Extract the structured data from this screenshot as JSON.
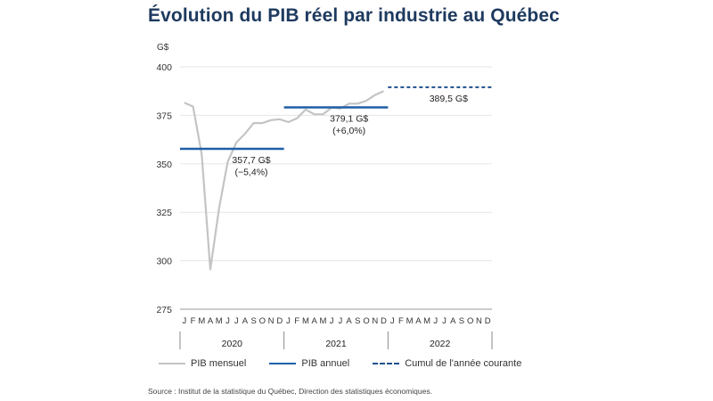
{
  "chart_data": {
    "type": "line",
    "title": "Évolution du PIB réel par industrie au Québec",
    "ylabel": "G$",
    "ylim": [
      275,
      400
    ],
    "yticks": [
      275,
      300,
      325,
      350,
      375,
      400
    ],
    "month_labels": [
      "J",
      "F",
      "M",
      "A",
      "M",
      "J",
      "J",
      "A",
      "S",
      "O",
      "N",
      "D"
    ],
    "years": [
      "2020",
      "2021",
      "2022"
    ],
    "series": [
      {
        "name": "PIB mensuel",
        "color": "#c4c4c4",
        "start": "2020-01",
        "values": [
          381.5,
          379.5,
          355,
          295.5,
          327,
          351,
          361,
          365.5,
          371,
          371,
          372.5,
          373,
          371.5,
          373.5,
          378,
          375.5,
          375.5,
          379,
          378.5,
          381,
          381,
          382.5,
          385.5,
          387.5
        ]
      },
      {
        "name": "PIB annuel",
        "color": "#1f5fa8",
        "segments": [
          {
            "year": "2020",
            "value": 357.7
          },
          {
            "year": "2021",
            "value": 379.1
          }
        ]
      },
      {
        "name": "Cumul de l'année courante",
        "color": "#1f4f8f",
        "segments": [
          {
            "year": "2022",
            "value": 389.5
          }
        ]
      }
    ],
    "annotations": [
      {
        "lines": [
          "357,7 G$",
          "(−5,4%)"
        ]
      },
      {
        "lines": [
          "379,1 G$",
          "(+6,0%)"
        ]
      },
      {
        "lines": [
          "389,5 G$"
        ]
      }
    ],
    "legend": [
      "PIB mensuel",
      "PIB annuel",
      "Cumul de l'année courante"
    ],
    "source": "Source : Institut de la statistique du Québec, Direction des statistiques économiques."
  }
}
